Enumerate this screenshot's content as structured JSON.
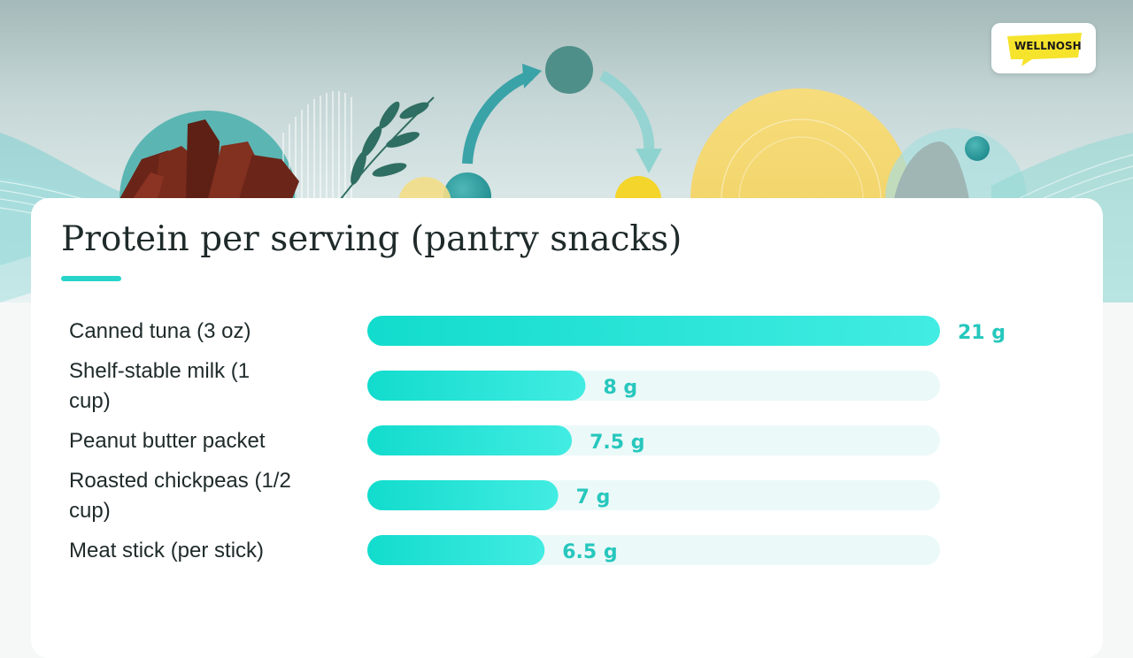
{
  "brand": {
    "logo_text": "WELLNOSH"
  },
  "colors": {
    "accent": "#27d4c9",
    "bar_start": "#12dccd",
    "bar_end": "#42ece2",
    "track": "#ebf9f9",
    "value_label": "#27c7bd",
    "text": "#1f2a2a",
    "logo_yellow": "#f6e32c"
  },
  "chart_data": {
    "type": "bar",
    "orientation": "horizontal",
    "title": "Protein per serving (pantry snacks)",
    "categories": [
      "Canned tuna (3 oz)",
      "Shelf-stable milk (1 cup)",
      "Peanut butter packet",
      "Roasted chickpeas (1/2 cup)",
      "Meat stick (per stick)"
    ],
    "values": [
      21,
      8,
      7.5,
      7,
      6.5
    ],
    "value_labels": [
      "21 g",
      "8 g",
      "7.5 g",
      "7 g",
      "6.5 g"
    ],
    "xlim": [
      0,
      21
    ],
    "grid": false,
    "legend": "none"
  }
}
